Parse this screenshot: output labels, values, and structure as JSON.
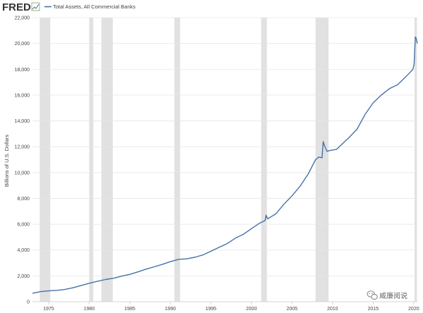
{
  "logo": {
    "text": "FRED"
  },
  "watermark": {
    "text": "威廉阅说"
  },
  "colors": {
    "series": "#4572a7",
    "recession": "#e1e1e1",
    "grid": "#e6e6e6",
    "axis": "#cccccc"
  },
  "chart_data": {
    "type": "line",
    "title": "",
    "xlabel": "",
    "ylabel": "Billions of U.S. Dollars",
    "xlim": [
      1973.0,
      2020.45
    ],
    "ylim": [
      0,
      22000
    ],
    "yticks": [
      0,
      2000,
      4000,
      6000,
      8000,
      10000,
      12000,
      14000,
      16000,
      18000,
      20000,
      22000
    ],
    "ytick_labels": [
      "0",
      "2,000",
      "4,000",
      "6,000",
      "8,000",
      "10,000",
      "12,000",
      "14,000",
      "16,000",
      "18,000",
      "20,000",
      "22,000"
    ],
    "xticks": [
      1975,
      1980,
      1985,
      1990,
      1995,
      2000,
      2005,
      2010,
      2015,
      2020
    ],
    "xtick_labels": [
      "1975",
      "1980",
      "1985",
      "1990",
      "1995",
      "2000",
      "2005",
      "2010",
      "2015",
      "2020"
    ],
    "grid": true,
    "legend_position": "top-left",
    "recessions": [
      [
        1973.9,
        1975.2
      ],
      [
        1980.0,
        1980.5
      ],
      [
        1981.5,
        1982.9
      ],
      [
        1990.5,
        1991.2
      ],
      [
        2001.2,
        2001.9
      ],
      [
        2007.9,
        2009.5
      ],
      [
        2020.1,
        2020.4
      ]
    ],
    "series": [
      {
        "name": "Total Assets, All Commercial Banks",
        "x": [
          1973.0,
          1974.0,
          1975.0,
          1976.0,
          1977.0,
          1978.0,
          1979.0,
          1980.0,
          1981.0,
          1982.0,
          1983.0,
          1984.0,
          1985.0,
          1986.0,
          1987.0,
          1988.0,
          1989.0,
          1990.0,
          1991.0,
          1992.0,
          1993.0,
          1994.0,
          1995.0,
          1996.0,
          1997.0,
          1998.0,
          1999.0,
          2000.0,
          2001.0,
          2001.7,
          2001.8,
          2002.0,
          2003.0,
          2004.0,
          2005.0,
          2006.0,
          2007.0,
          2007.9,
          2008.3,
          2008.7,
          2008.85,
          2009.0,
          2009.3,
          2009.6,
          2010.0,
          2010.5,
          2011.0,
          2012.0,
          2013.0,
          2014.0,
          2015.0,
          2016.0,
          2017.0,
          2018.0,
          2019.0,
          2019.9,
          2020.05,
          2020.2,
          2020.3,
          2020.45
        ],
        "values": [
          650,
          780,
          840,
          880,
          950,
          1080,
          1250,
          1430,
          1580,
          1720,
          1820,
          1980,
          2120,
          2310,
          2520,
          2700,
          2890,
          3100,
          3280,
          3320,
          3440,
          3620,
          3910,
          4210,
          4500,
          4920,
          5220,
          5660,
          6080,
          6300,
          6700,
          6420,
          6800,
          7550,
          8200,
          8950,
          9900,
          11000,
          11200,
          11150,
          12400,
          12100,
          11650,
          11700,
          11750,
          11800,
          12100,
          12700,
          13350,
          14500,
          15400,
          16000,
          16500,
          16800,
          17400,
          18000,
          18400,
          20500,
          20400,
          20000
        ]
      }
    ]
  }
}
